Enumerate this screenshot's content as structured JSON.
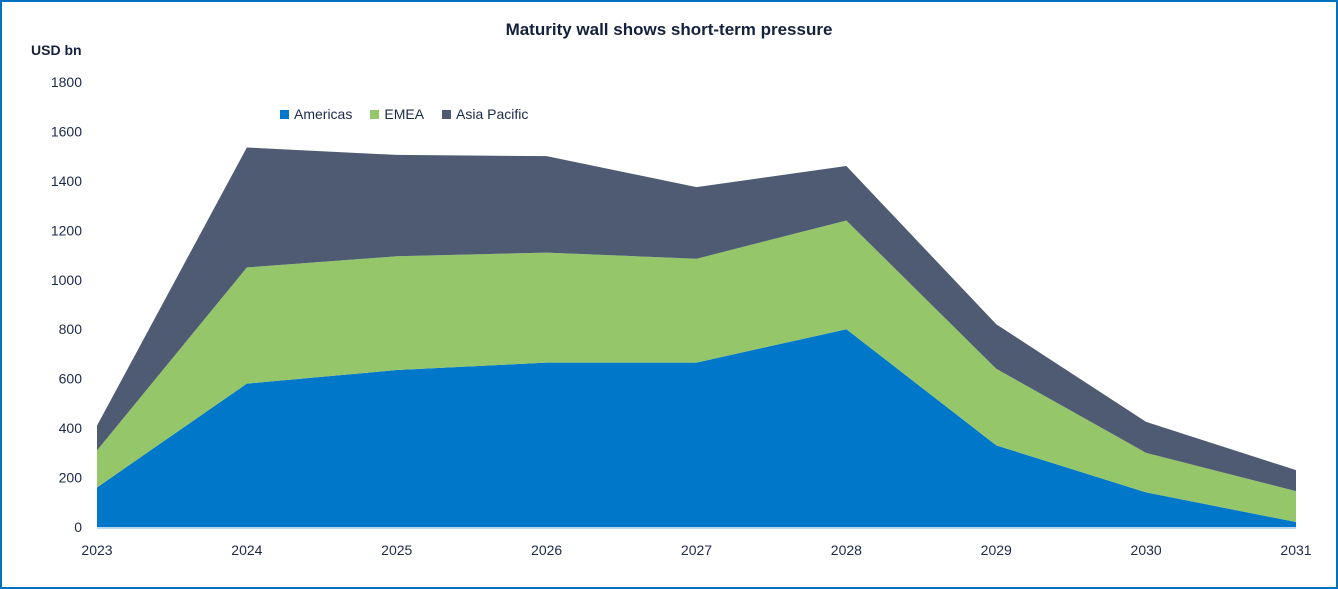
{
  "chart_data": {
    "type": "area",
    "stacked": true,
    "title": "Maturity wall shows short-term pressure",
    "ylabel": "USD bn",
    "xlabel": "",
    "categories": [
      "2023",
      "2024",
      "2025",
      "2026",
      "2027",
      "2028",
      "2029",
      "2030",
      "2031"
    ],
    "ylim": [
      0,
      1800
    ],
    "yticks": [
      "0",
      "200",
      "400",
      "600",
      "800",
      "1000",
      "1200",
      "1400",
      "1600",
      "1800"
    ],
    "ytick_values": [
      0,
      200,
      400,
      600,
      800,
      1000,
      1200,
      1400,
      1600,
      1800
    ],
    "grid": false,
    "legend_position": "top-left",
    "series": [
      {
        "name": "Americas",
        "color": "#0077C8",
        "values": [
          160,
          580,
          635,
          665,
          665,
          800,
          330,
          140,
          20
        ]
      },
      {
        "name": "EMEA",
        "color": "#95C66A",
        "values": [
          150,
          470,
          460,
          445,
          420,
          440,
          310,
          160,
          125
        ]
      },
      {
        "name": "Asia Pacific",
        "color": "#4E5B73",
        "values": [
          100,
          485,
          410,
          390,
          290,
          220,
          180,
          125,
          85
        ]
      }
    ]
  }
}
